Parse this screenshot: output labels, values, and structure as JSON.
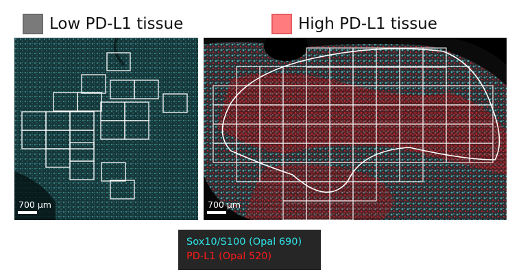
{
  "legend": {
    "low": {
      "label": "Low PD-L1 tissue",
      "swatch_color": "#7a7a7a"
    },
    "high": {
      "label": "High PD-L1 tissue",
      "swatch_color": "#ff7b7e"
    }
  },
  "panels": {
    "left": {
      "scale_label": "700 μm"
    },
    "right": {
      "scale_label": "700 μm"
    }
  },
  "channels": [
    {
      "label": "Sox10/S100 (Opal 690)",
      "color": "#2ee6ea"
    },
    {
      "label": "PD-L1 (Opal 520)",
      "color": "#ff1a1a"
    }
  ],
  "colors": {
    "tissue_cyan": "#1e5a5c",
    "tissue_red": "#c81e26",
    "grid": "#ffffff"
  }
}
